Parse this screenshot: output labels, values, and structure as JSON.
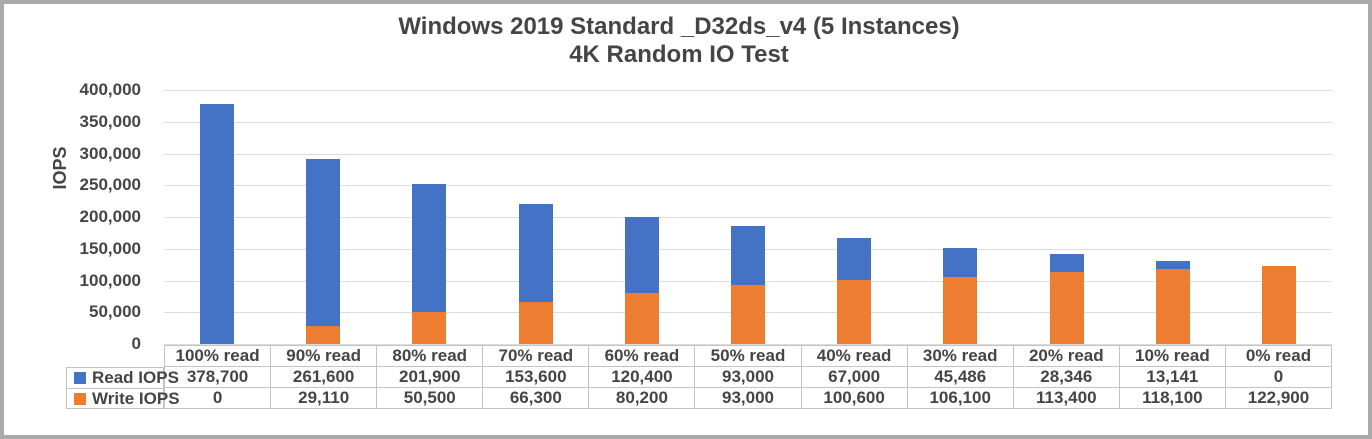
{
  "chart_data": {
    "type": "bar",
    "stacked": true,
    "title": "Windows 2019 Standard _D32ds_v4 (5 Instances)",
    "subtitle": "4K Random IO Test",
    "ylabel": "IOPS",
    "ylim": [
      0,
      400000
    ],
    "ytick_step": 50000,
    "ytick_labels": [
      "0",
      "50,000",
      "100,000",
      "150,000",
      "200,000",
      "250,000",
      "300,000",
      "350,000",
      "400,000"
    ],
    "grid": true,
    "legend_position": "data-table-left",
    "categories": [
      "100% read",
      "90% read",
      "80% read",
      "70% read",
      "60% read",
      "50% read",
      "40% read",
      "30% read",
      "20% read",
      "10% read",
      "0% read"
    ],
    "series": [
      {
        "name": "Read IOPS",
        "color": "#4472C4",
        "values": [
          378700,
          261600,
          201900,
          153600,
          120400,
          93000,
          67000,
          45486,
          28346,
          13141,
          0
        ],
        "labels": [
          "378,700",
          "261,600",
          "201,900",
          "153,600",
          "120,400",
          "93,000",
          "67,000",
          "45,486",
          "28,346",
          "13,141",
          "0"
        ]
      },
      {
        "name": "Write IOPS",
        "color": "#ED7D31",
        "values": [
          0,
          29110,
          50500,
          66300,
          80200,
          93000,
          100600,
          106100,
          113400,
          118100,
          122900
        ],
        "labels": [
          "0",
          "29,110",
          "50,500",
          "66,300",
          "80,200",
          "93,000",
          "100,600",
          "106,100",
          "113,400",
          "118,100",
          "122,900"
        ]
      }
    ],
    "stack_order_bottom_to_top": [
      "Write IOPS",
      "Read IOPS"
    ]
  },
  "colors": {
    "read_series": "#4472C4",
    "write_series": "#ED7D31",
    "gridline": "#dcdcdc",
    "table_border": "#c3c3c3",
    "text": "#454545",
    "frame_border": "#aaaaaa"
  }
}
